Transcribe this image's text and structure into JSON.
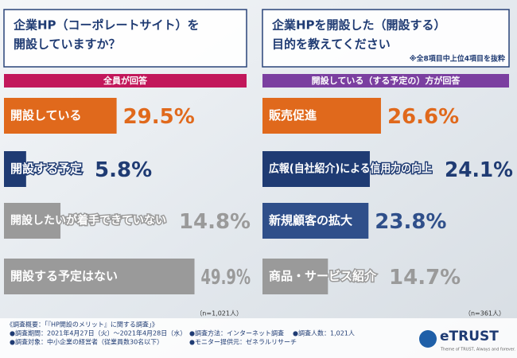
{
  "chart_data": [
    {
      "type": "bar",
      "orientation": "horizontal",
      "title": [
        "企業HP（コーポレートサイト）を",
        "開設していますか？"
      ],
      "subtitle": "全員が回答",
      "subtitle_color": "#c2185b",
      "categories": [
        "開設している",
        "開設する予定",
        "開設したいが着手できていない",
        "開設する予定はない"
      ],
      "values": [
        29.5,
        5.8,
        14.8,
        49.9
      ],
      "value_labels": [
        "29.5%",
        "5.8%",
        "14.8%",
        "49.9%"
      ],
      "colors": [
        "#e0691c",
        "#1f3b73",
        "#9a9a9a",
        "#9a9a9a"
      ],
      "annotation": "（n=1,021人）"
    },
    {
      "type": "bar",
      "orientation": "horizontal",
      "title": [
        "企業HPを開設した（開設する）",
        "目的を教えてください"
      ],
      "note": "※全8項目中上位4項目を抜粋",
      "subtitle": "開設している（する予定の）方が回答",
      "subtitle_color": "#7b3fa0",
      "categories": [
        "販売促進",
        "広報(自社紹介)による信用力の向上",
        "新規顧客の拡大",
        "商品・サービス紹介"
      ],
      "values": [
        26.6,
        24.1,
        23.8,
        14.7
      ],
      "value_labels": [
        "26.6%",
        "24.1%",
        "23.8%",
        "14.7%"
      ],
      "colors": [
        "#e0691c",
        "#1f3b73",
        "#2f4f8a",
        "#9a9a9a"
      ],
      "annotation": "（n=361人）"
    }
  ],
  "footer": {
    "lines": [
      "《調査概要：「『HP開設のメリット』に関する調査」》",
      "●調査期間：2021年4月27日（火）～2021年4月28日（水）",
      "●調査方法：インターネット調査",
      "●調査人数：1,021人",
      "●調査対象：中小企業の経営者（従業員数30名以下）",
      "●モニター提供元：ゼネラルリサーチ"
    ],
    "logo": "eTRUST",
    "tagline": "Theme of TRUST, Always and forever."
  }
}
